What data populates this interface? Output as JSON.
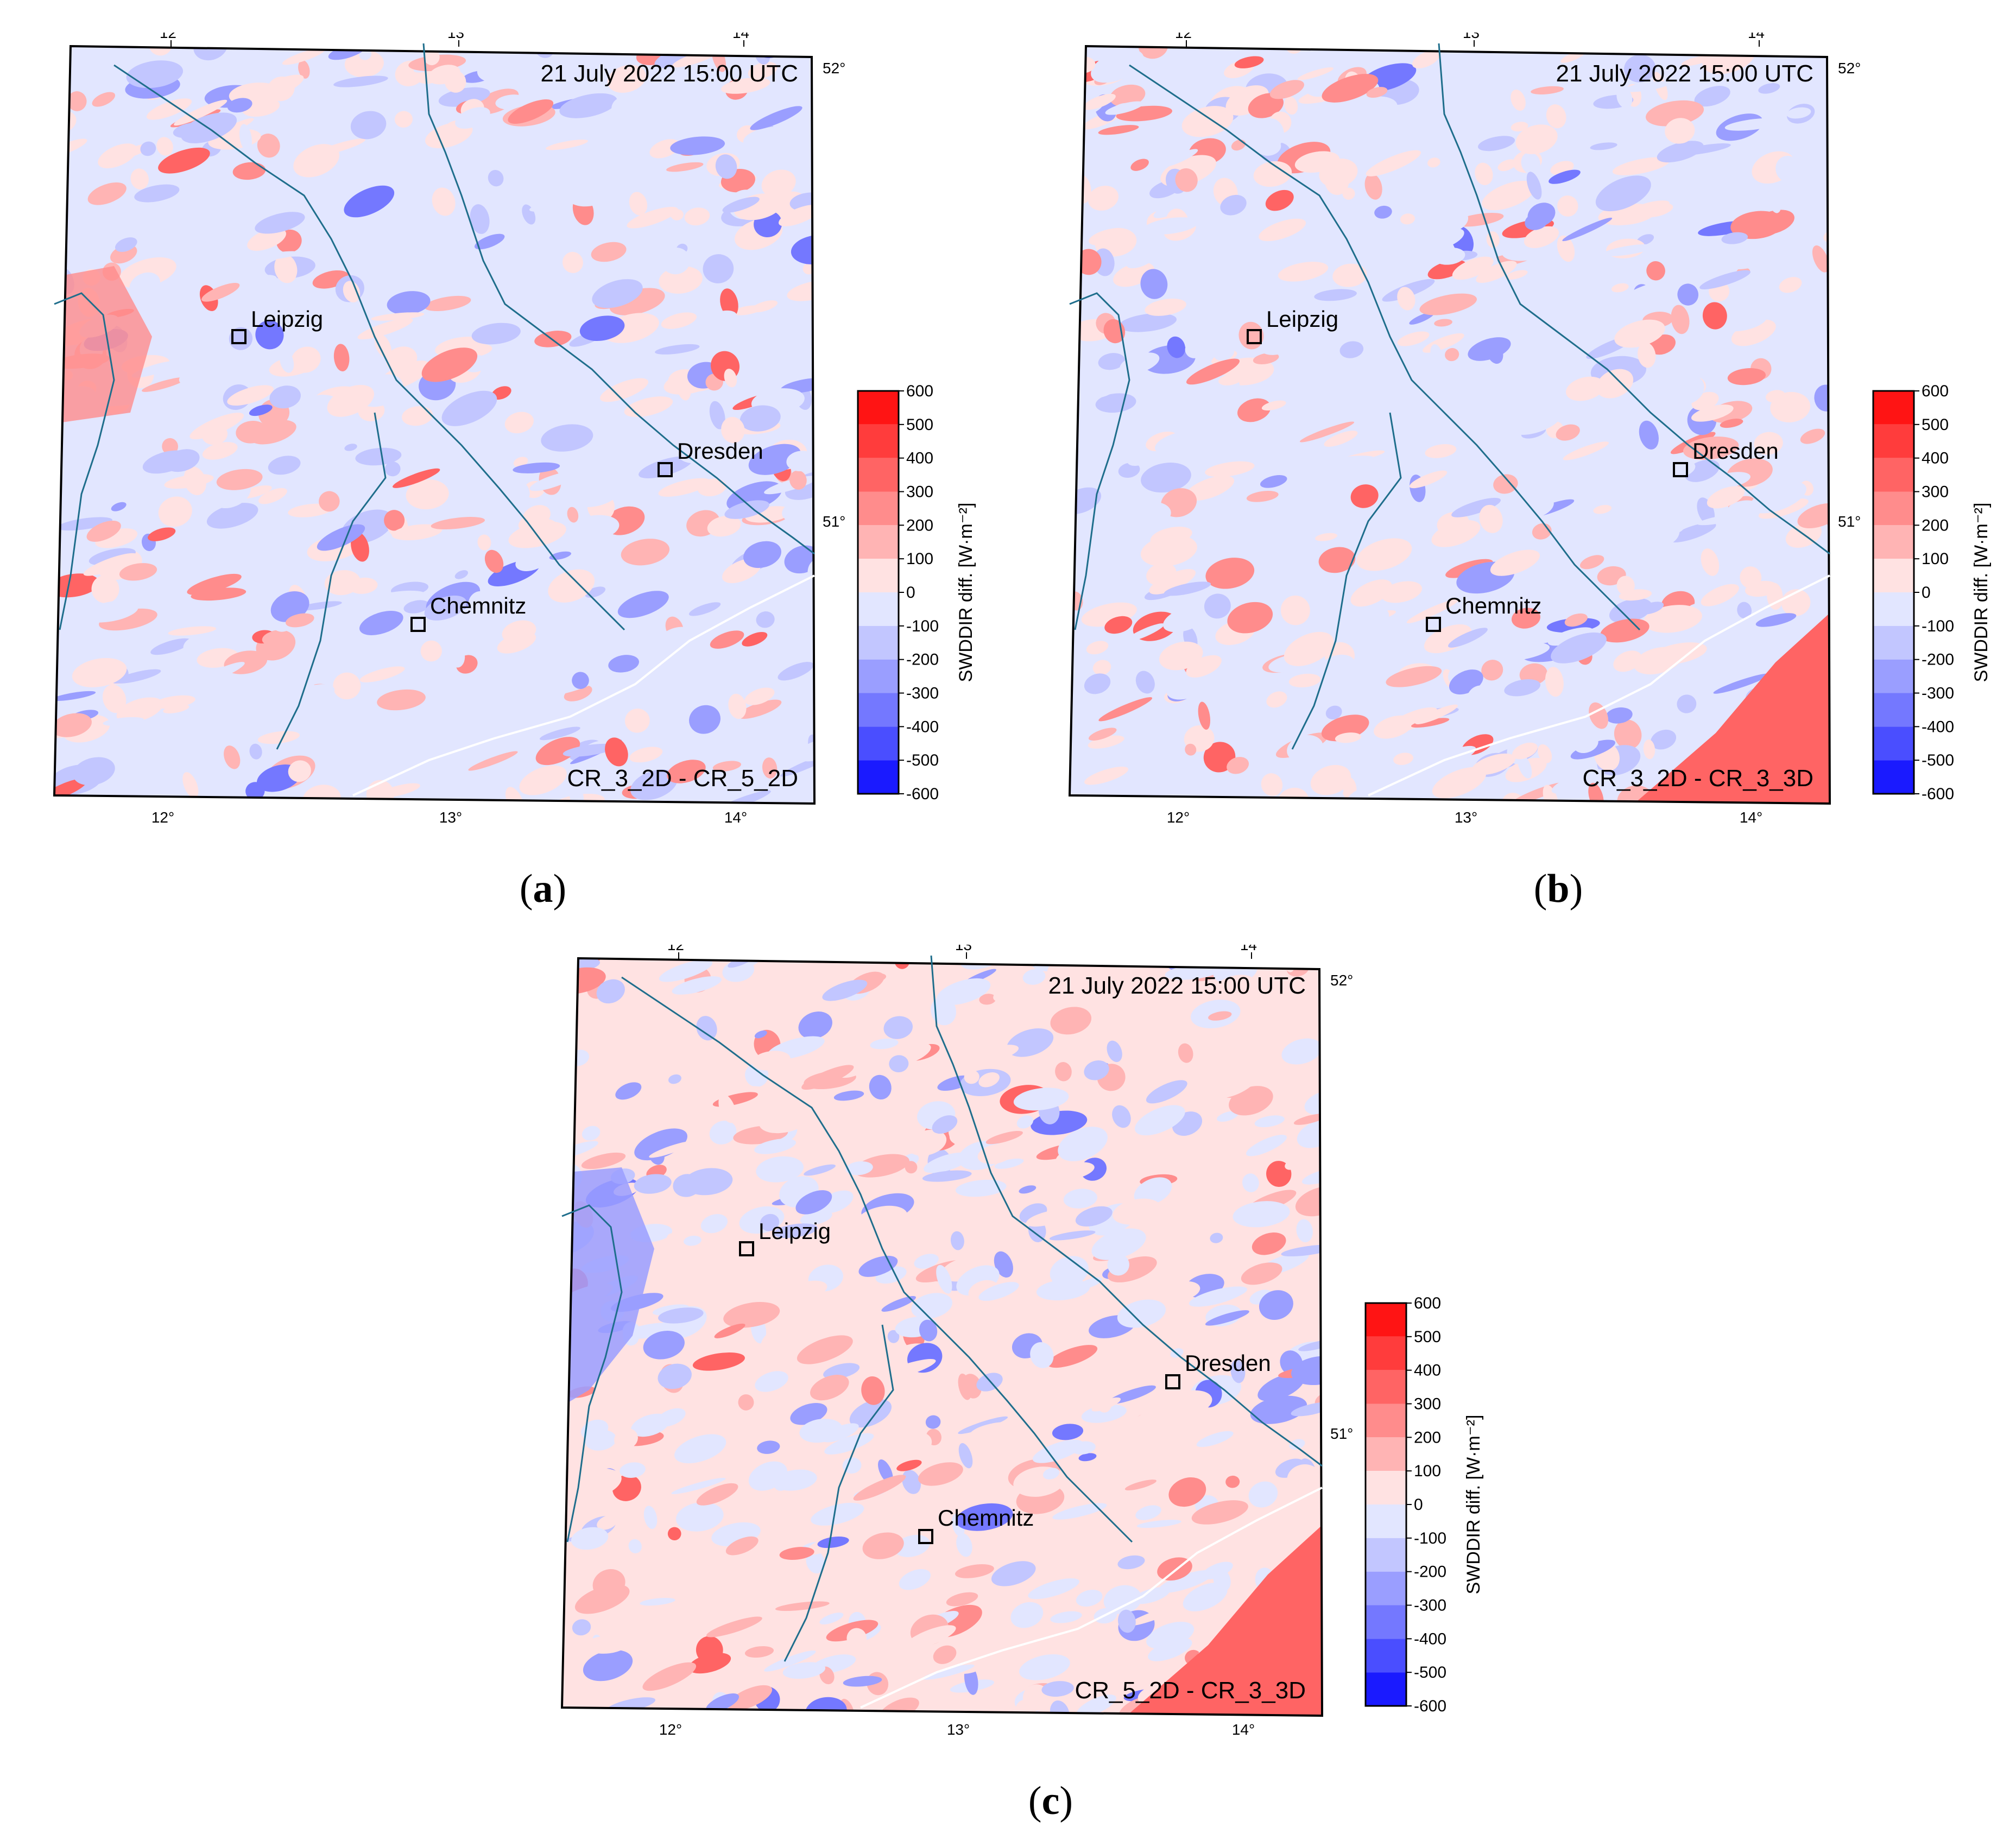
{
  "figure": {
    "panels": [
      {
        "caption_letter": "a",
        "timestamp": "21 July 2022 15:00 UTC",
        "comparison": "CR_3_2D - CR_5_2D",
        "colorbar_label": "SWDDIR diff. [W·m⁻²]"
      },
      {
        "caption_letter": "b",
        "timestamp": "21 July 2022 15:00 UTC",
        "comparison": "CR_3_2D - CR_3_3D",
        "colorbar_label": "SWDDIR diff. [W·m⁻²]"
      },
      {
        "caption_letter": "c",
        "timestamp": "21 July 2022 15:00 UTC",
        "comparison": "CR_5_2D - CR_3_3D",
        "colorbar_label": "SWDDIR diff. [W·m⁻²]"
      }
    ],
    "cities": [
      "Leipzig",
      "Dresden",
      "Chemnitz"
    ],
    "lon_ticks": [
      "12°",
      "13°",
      "14°"
    ],
    "lat_ticks": [
      "52°",
      "51°"
    ],
    "colorbar": {
      "ticks": [
        "600",
        "500",
        "400",
        "300",
        "200",
        "100",
        "0",
        "-100",
        "-200",
        "-300",
        "-400",
        "-500",
        "-600"
      ],
      "levels": [
        {
          "from": 500,
          "to": 600,
          "color": "#ff1414"
        },
        {
          "from": 400,
          "to": 500,
          "color": "#ff3c3c"
        },
        {
          "from": 300,
          "to": 400,
          "color": "#ff6464"
        },
        {
          "from": 200,
          "to": 300,
          "color": "#ff8c8c"
        },
        {
          "from": 100,
          "to": 200,
          "color": "#ffb4b4"
        },
        {
          "from": 0,
          "to": 100,
          "color": "#ffe2e2"
        },
        {
          "from": -100,
          "to": 0,
          "color": "#e2e6ff"
        },
        {
          "from": -200,
          "to": -100,
          "color": "#c2c6ff"
        },
        {
          "from": -300,
          "to": -200,
          "color": "#9a9eff"
        },
        {
          "from": -400,
          "to": -300,
          "color": "#7478ff"
        },
        {
          "from": -500,
          "to": -400,
          "color": "#4a4eff"
        },
        {
          "from": -600,
          "to": -500,
          "color": "#1a1aff"
        }
      ]
    },
    "colors": {
      "river": "#1f6e8c",
      "border": "#ffffff",
      "frame": "#000000"
    }
  }
}
